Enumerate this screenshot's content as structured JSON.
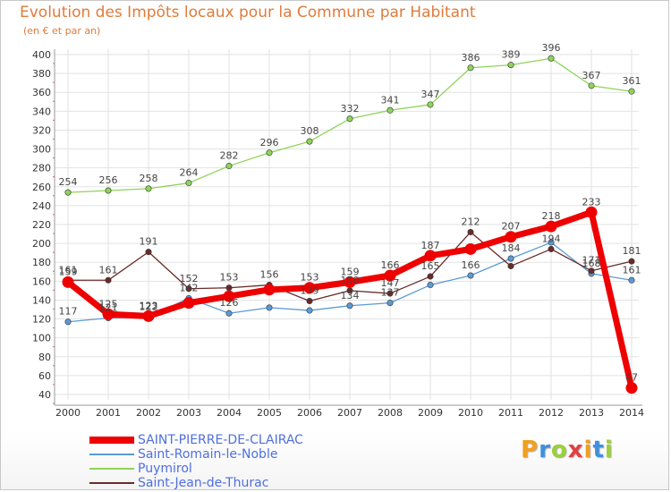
{
  "header": {
    "title": "Evolution des Impôts locaux pour la Commune par Habitant",
    "subtitle": "(en € et par an)"
  },
  "chart_data": {
    "type": "line",
    "title": "Evolution des Impôts locaux pour la Commune par Habitant",
    "subtitle": "(en € et par an)",
    "x": [
      "2000",
      "2001",
      "2002",
      "2003",
      "2004",
      "2005",
      "2006",
      "2007",
      "2008",
      "2009",
      "2010",
      "2011",
      "2012",
      "2013",
      "2014"
    ],
    "ylim": [
      40,
      400
    ],
    "yticks": [
      40,
      60,
      80,
      100,
      120,
      140,
      160,
      180,
      200,
      220,
      240,
      260,
      280,
      300,
      320,
      340,
      360,
      380,
      400
    ],
    "grid": true,
    "legend_position": "bottom-left",
    "series": [
      {
        "name": "SAINT-PIERRE-DE-CLAIRAC",
        "color": "#ee0000",
        "values": [
          159,
          125,
          123,
          137,
          144,
          151,
          153,
          159,
          166,
          187,
          194,
          207,
          218,
          233,
          47
        ],
        "labels": [
          "159",
          "125",
          "123",
          "",
          "",
          "",
          "153",
          "159",
          "166",
          "187",
          "",
          "207",
          "218",
          "233",
          "47"
        ]
      },
      {
        "name": "Saint-Romain-le-Noble",
        "color": "#5b9bd5",
        "values": [
          117,
          121,
          122,
          142,
          126,
          132,
          129,
          134,
          137,
          156,
          166,
          184,
          201,
          168,
          161
        ],
        "labels": [
          "117",
          "121",
          "122",
          "142",
          "126",
          "",
          "",
          "134",
          "137",
          "",
          "166",
          "184",
          "",
          "168",
          "161"
        ]
      },
      {
        "name": "Puymirol",
        "color": "#8ed45a",
        "values": [
          254,
          256,
          258,
          264,
          282,
          296,
          308,
          332,
          341,
          347,
          386,
          389,
          396,
          367,
          361
        ],
        "labels": [
          "254",
          "256",
          "258",
          "264",
          "282",
          "296",
          "308",
          "332",
          "341",
          "347",
          "386",
          "389",
          "396",
          "367",
          "361"
        ]
      },
      {
        "name": "Saint-Jean-de-Thurac",
        "color": "#6b2a2a",
        "values": [
          161,
          161,
          191,
          152,
          153,
          156,
          139,
          150,
          147,
          165,
          212,
          176,
          194,
          171,
          181
        ],
        "labels": [
          "161",
          "161",
          "191",
          "152",
          "153",
          "156",
          "139",
          "150",
          "147",
          "165",
          "212",
          "",
          "194",
          "171",
          "181"
        ]
      }
    ]
  },
  "logo": {
    "letters": [
      "P",
      "r",
      "o",
      "x",
      "i",
      "t",
      "i"
    ],
    "colors": [
      "#f0a020",
      "#3f8fdc",
      "#9ad03a",
      "#e04040",
      "#f0a020",
      "#3f8fdc",
      "#9ad03a"
    ]
  }
}
